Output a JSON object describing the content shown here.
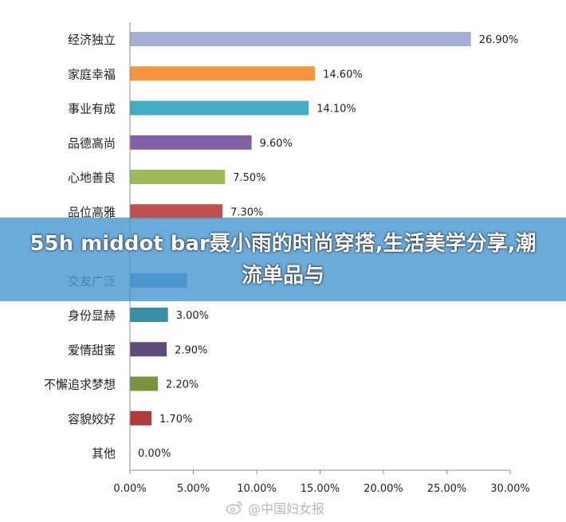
{
  "chart_data": {
    "type": "bar",
    "orientation": "horizontal",
    "categories": [
      "经济独立",
      "家庭幸福",
      "事业有成",
      "品德高尚",
      "心地善良",
      "品位高雅",
      "",
      "交友广泛",
      "身份显赫",
      "爱情甜蜜",
      "不懈追求梦想",
      "容貌姣好",
      "其他"
    ],
    "values": [
      26.9,
      14.6,
      14.1,
      9.6,
      7.5,
      7.3,
      null,
      4.5,
      3.0,
      2.9,
      2.2,
      1.7,
      0.0
    ],
    "data_labels": [
      "26.90%",
      "14.60%",
      "14.10%",
      "9.60%",
      "7.50%",
      "7.30%",
      "",
      "",
      "3.00%",
      "2.90%",
      "2.20%",
      "1.70%",
      "0.00%"
    ],
    "colors": [
      "#a3aed6",
      "#f69440",
      "#42abc5",
      "#7e62a4",
      "#9bbb59",
      "#c0504d",
      "#4f81bd",
      "#4f81bd",
      "#3a8ea5",
      "#604a7b",
      "#77933c",
      "#b33a3a",
      "#7f7f7f"
    ],
    "xticks": [
      "0.00%",
      "5.00%",
      "10.00%",
      "15.00%",
      "20.00%",
      "25.00%",
      "30.00%"
    ],
    "xlim": [
      0,
      30
    ],
    "grid": false,
    "legend": "none"
  },
  "overlay": {
    "banner_text": "55h middot bar聂小雨的时尚穿搭,生活美学分享,潮流单品与",
    "watermark_text": "@中国妇女报",
    "watermark_icon": "weibo-icon"
  }
}
